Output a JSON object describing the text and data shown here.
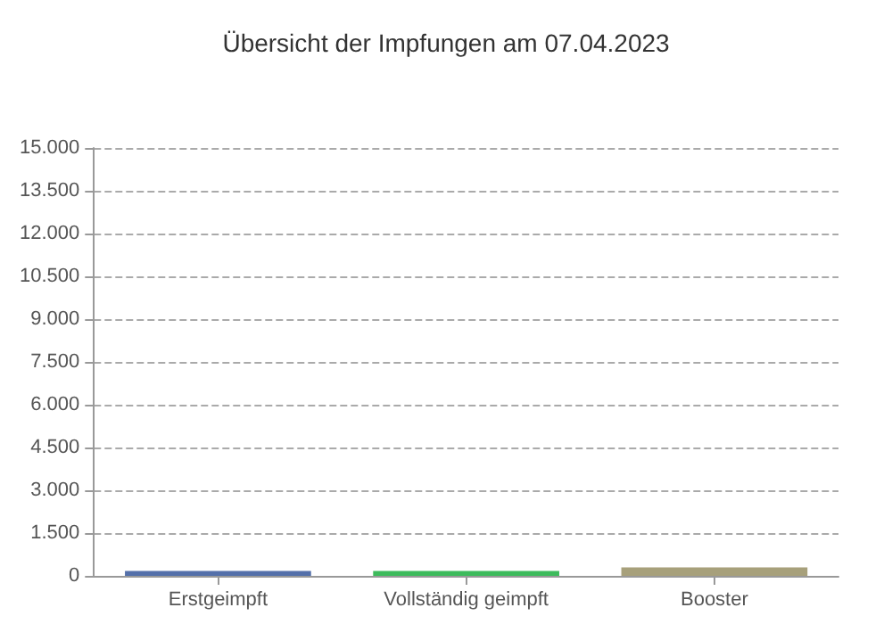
{
  "chart_data": {
    "type": "bar",
    "title": "Übersicht der Impfungen am 07.04.2023",
    "categories": [
      "Erstgeimpft",
      "Vollständig geimpft",
      "Booster"
    ],
    "values": [
      170,
      170,
      300
    ],
    "colors": [
      "#5470aa",
      "#3dbb5c",
      "#a7a07b"
    ],
    "ylim": [
      0,
      15000
    ],
    "yticks": [
      {
        "value": 0,
        "label": "0"
      },
      {
        "value": 1500,
        "label": "1.500"
      },
      {
        "value": 3000,
        "label": "3.000"
      },
      {
        "value": 4500,
        "label": "4.500"
      },
      {
        "value": 6000,
        "label": "6.000"
      },
      {
        "value": 7500,
        "label": "7.500"
      },
      {
        "value": 9000,
        "label": "9.000"
      },
      {
        "value": 10500,
        "label": "10.500"
      },
      {
        "value": 12000,
        "label": "12.000"
      },
      {
        "value": 13500,
        "label": "13.500"
      },
      {
        "value": 15000,
        "label": "15.000"
      }
    ],
    "grid": "y"
  }
}
